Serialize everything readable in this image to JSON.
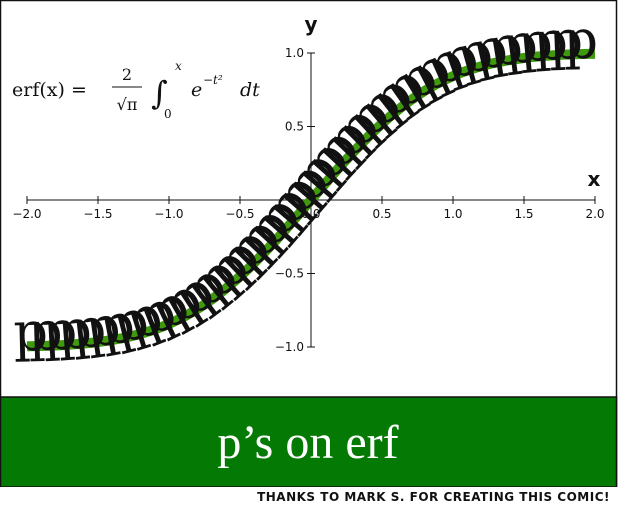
{
  "chart_data": {
    "type": "line",
    "title": "",
    "xlabel": "x",
    "ylabel": "y",
    "xlim": [
      -2.0,
      2.0
    ],
    "ylim": [
      -1.0,
      1.0
    ],
    "x_ticks": [
      "−2.0",
      "−1.5",
      "−1.0",
      "−0.5",
      "0.0",
      "0.5",
      "1.0",
      "1.5",
      "2.0"
    ],
    "y_ticks": [
      "−1.0",
      "−0.5",
      "0.5",
      "1.0"
    ],
    "x_tick_values": [
      -2.0,
      -1.5,
      -1.0,
      -0.5,
      0.0,
      0.5,
      1.0,
      1.5,
      2.0
    ],
    "y_tick_values": [
      -1.0,
      -0.5,
      0.5,
      1.0
    ],
    "series": [
      {
        "function": "erf",
        "color": "#3f9a0e",
        "x": [
          -2.0,
          -1.75,
          -1.5,
          -1.25,
          -1.0,
          -0.75,
          -0.5,
          -0.25,
          0.0,
          0.25,
          0.5,
          0.75,
          1.0,
          1.25,
          1.5,
          1.75,
          2.0
        ],
        "y": [
          -0.995,
          -0.987,
          -0.966,
          -0.923,
          -0.843,
          -0.711,
          -0.52,
          -0.276,
          0.0,
          0.276,
          0.52,
          0.711,
          0.843,
          0.923,
          0.966,
          0.987,
          0.995
        ]
      }
    ],
    "grid": false,
    "annotations": {
      "formula": {
        "lhs": "erf(x) =",
        "coef_num": "2",
        "coef_den": "√π",
        "integral": "∫",
        "upper": "x",
        "lower": "0",
        "integrand_base": "e",
        "integrand_exp": "−t²",
        "differential": "dt"
      },
      "curve_letter": "p",
      "curve_letter_count": 45
    }
  },
  "banner": {
    "text": "p’s on erf",
    "color": "#047a04"
  },
  "credit": "THANKS TO MARK S. FOR CREATING THIS COMIC!"
}
